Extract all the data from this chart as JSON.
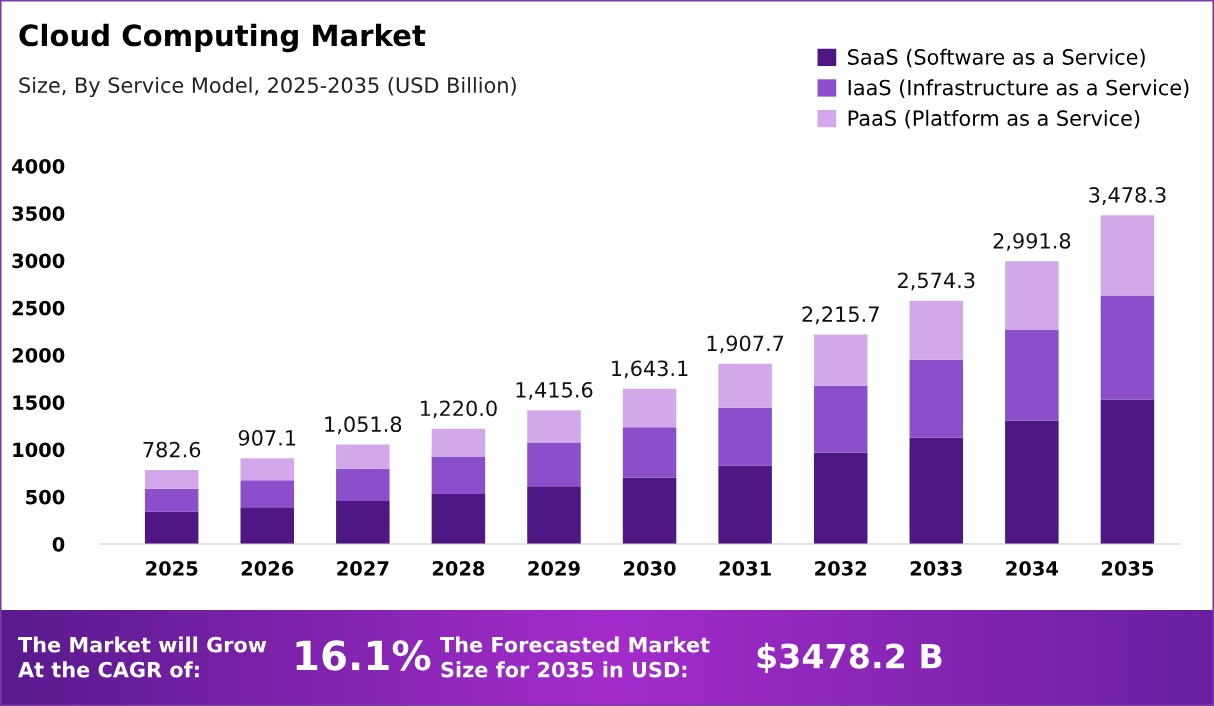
{
  "chart_data": {
    "type": "bar",
    "title": "Cloud Computing Market",
    "subtitle": "Size, By Service Model, 2025-2035 (USD Billion)",
    "categories": [
      "2025",
      "2026",
      "2027",
      "2028",
      "2029",
      "2030",
      "2031",
      "2032",
      "2033",
      "2034",
      "2035"
    ],
    "stacked": true,
    "series": [
      {
        "name": "SaaS (Software as a Service)",
        "color": "#4f1783",
        "values": [
          340,
          390,
          455,
          530,
          612,
          705,
          828,
          965,
          1125,
          1305,
          1530
        ]
      },
      {
        "name": "IaaS (Infrastructure as a Service)",
        "color": "#8b4fcb",
        "values": [
          245,
          285,
          340,
          395,
          462,
          530,
          615,
          710,
          825,
          965,
          1100
        ]
      },
      {
        "name": "PaaS (Platform as a Service)",
        "color": "#d2a8ea",
        "values": [
          197.6,
          232.1,
          256.8,
          295,
          341.6,
          408.1,
          464.7,
          540.7,
          624.3,
          721.8,
          848.3
        ]
      }
    ],
    "totals": [
      "782.6",
      "907.1",
      "1,051.8",
      "1,220.0",
      "1,415.6",
      "1,643.1",
      "1,907.7",
      "2,215.7",
      "2,574.3",
      "2,991.8",
      "3,478.3"
    ],
    "ylim": [
      0,
      4000
    ],
    "yticks": [
      0,
      500,
      1000,
      1500,
      2000,
      2500,
      3000,
      3500,
      4000
    ],
    "grid": false,
    "legend": "top right",
    "annotations": [
      "The Market will Grow\nAt the CAGR of:",
      "16.1%",
      "The Forecasted Market\nSize for 2035 in USD:",
      "$3478.2 B"
    ]
  }
}
